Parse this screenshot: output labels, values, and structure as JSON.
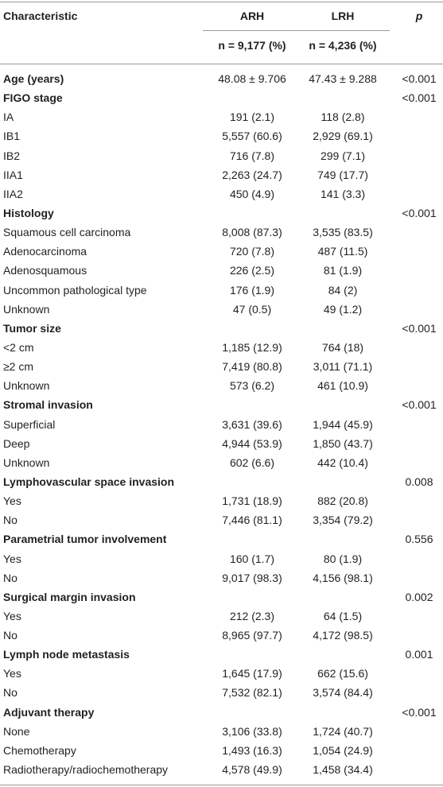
{
  "header": {
    "characteristic": "Characteristic",
    "arh": "ARH",
    "lrh": "LRH",
    "p": "p",
    "arh_n": "n = 9,177 (%)",
    "lrh_n": "n = 4,236 (%)"
  },
  "table": {
    "rows": [
      {
        "label": "Age (years)",
        "arh": "48.08 ± 9.706",
        "lrh": "47.43 ± 9.288",
        "p": "<0.001",
        "bold": true
      },
      {
        "label": "FIGO stage",
        "p": "<0.001",
        "bold": true
      },
      {
        "label": "IA",
        "arh": "191 (2.1)",
        "lrh": "118 (2.8)"
      },
      {
        "label": "IB1",
        "arh": "5,557 (60.6)",
        "lrh": "2,929 (69.1)"
      },
      {
        "label": "IB2",
        "arh": "716 (7.8)",
        "lrh": "299 (7.1)"
      },
      {
        "label": "IIA1",
        "arh": "2,263 (24.7)",
        "lrh": "749 (17.7)"
      },
      {
        "label": "IIA2",
        "arh": "450 (4.9)",
        "lrh": "141 (3.3)"
      },
      {
        "label": "Histology",
        "p": "<0.001",
        "bold": true
      },
      {
        "label": "Squamous cell carcinoma",
        "arh": "8,008 (87.3)",
        "lrh": "3,535 (83.5)"
      },
      {
        "label": "Adenocarcinoma",
        "arh": "720 (7.8)",
        "lrh": "487 (11.5)"
      },
      {
        "label": "Adenosquamous",
        "arh": "226 (2.5)",
        "lrh": "81 (1.9)"
      },
      {
        "label": "Uncommon pathological type",
        "arh": "176 (1.9)",
        "lrh": "84 (2)"
      },
      {
        "label": "Unknown",
        "arh": "47 (0.5)",
        "lrh": "49 (1.2)"
      },
      {
        "label": "Tumor size",
        "p": "<0.001",
        "bold": true
      },
      {
        "label": "<2 cm",
        "arh": "1,185 (12.9)",
        "lrh": "764 (18)"
      },
      {
        "label": "≥2 cm",
        "arh": "7,419 (80.8)",
        "lrh": "3,011 (71.1)"
      },
      {
        "label": "Unknown",
        "arh": "573 (6.2)",
        "lrh": "461 (10.9)"
      },
      {
        "label": "Stromal invasion",
        "p": "<0.001",
        "bold": true
      },
      {
        "label": "Superficial",
        "arh": "3,631 (39.6)",
        "lrh": "1,944 (45.9)"
      },
      {
        "label": "Deep",
        "arh": "4,944 (53.9)",
        "lrh": "1,850 (43.7)"
      },
      {
        "label": "Unknown",
        "arh": "602 (6.6)",
        "lrh": "442 (10.4)"
      },
      {
        "label": "Lymphovascular space invasion",
        "p": "0.008",
        "bold": true
      },
      {
        "label": "Yes",
        "arh": "1,731 (18.9)",
        "lrh": "882 (20.8)"
      },
      {
        "label": "No",
        "arh": "7,446 (81.1)",
        "lrh": "3,354 (79.2)"
      },
      {
        "label": "Parametrial tumor involvement",
        "p": "0.556",
        "bold": true
      },
      {
        "label": "Yes",
        "arh": "160 (1.7)",
        "lrh": "80 (1.9)"
      },
      {
        "label": "No",
        "arh": "9,017 (98.3)",
        "lrh": "4,156 (98.1)"
      },
      {
        "label": "Surgical margin invasion",
        "p": "0.002",
        "bold": true
      },
      {
        "label": "Yes",
        "arh": "212 (2.3)",
        "lrh": "64 (1.5)"
      },
      {
        "label": "No",
        "arh": "8,965 (97.7)",
        "lrh": "4,172 (98.5)"
      },
      {
        "label": "Lymph node metastasis",
        "p": "0.001",
        "bold": true
      },
      {
        "label": "Yes",
        "arh": "1,645 (17.9)",
        "lrh": "662 (15.6)"
      },
      {
        "label": "No",
        "arh": "7,532 (82.1)",
        "lrh": "3,574 (84.4)"
      },
      {
        "label": "Adjuvant therapy",
        "p": "<0.001",
        "bold": true
      },
      {
        "label": "None",
        "arh": "3,106 (33.8)",
        "lrh": "1,724 (40.7)"
      },
      {
        "label": "Chemotherapy",
        "arh": "1,493 (16.3)",
        "lrh": "1,054 (24.9)"
      },
      {
        "label": "Radiotherapy/radiochemotherapy",
        "arh": "4,578 (49.9)",
        "lrh": "1,458 (34.4)"
      }
    ]
  }
}
